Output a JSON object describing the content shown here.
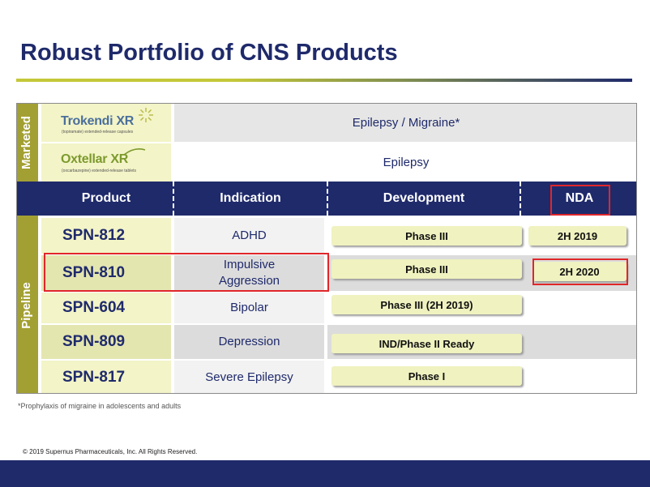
{
  "title": "Robust Portfolio of CNS Products",
  "marketed": {
    "side_label": "Marketed",
    "products": [
      {
        "logo_name": "Trokendi XR",
        "logo_sub": "(topiramate) extended-release capsules",
        "indication": "Epilepsy / Migraine*"
      },
      {
        "logo_name": "Oxtellar XR",
        "logo_sub": "(oxcarbazepine) extended-release tablets",
        "indication": "Epilepsy"
      }
    ]
  },
  "header": {
    "product": "Product",
    "indication": "Indication",
    "development": "Development",
    "nda": "NDA"
  },
  "pipeline": {
    "side_label": "Pipeline",
    "rows": [
      {
        "product": "SPN-812",
        "indication": "ADHD",
        "development": "Phase III",
        "nda": "2H 2019"
      },
      {
        "product": "SPN-810",
        "indication_line1": "Impulsive",
        "indication_line2": "Aggression",
        "development": "Phase III",
        "nda": "2H 2020"
      },
      {
        "product": "SPN-604",
        "indication": "Bipolar",
        "development": "Phase III (2H 2019)"
      },
      {
        "product": "SPN-809",
        "indication": "Depression",
        "development": "IND/Phase II Ready"
      },
      {
        "product": "SPN-817",
        "indication": "Severe Epilepsy",
        "development": "Phase I"
      }
    ]
  },
  "footnote": "*Prophylaxis of migraine in adolescents and adults",
  "copyright": "© 2019 Supernus Pharmaceuticals, Inc. All Rights Reserved.",
  "colors": {
    "navy": "#1f2a6b",
    "olive": "#a3a033",
    "highlight": "#e0262a"
  }
}
